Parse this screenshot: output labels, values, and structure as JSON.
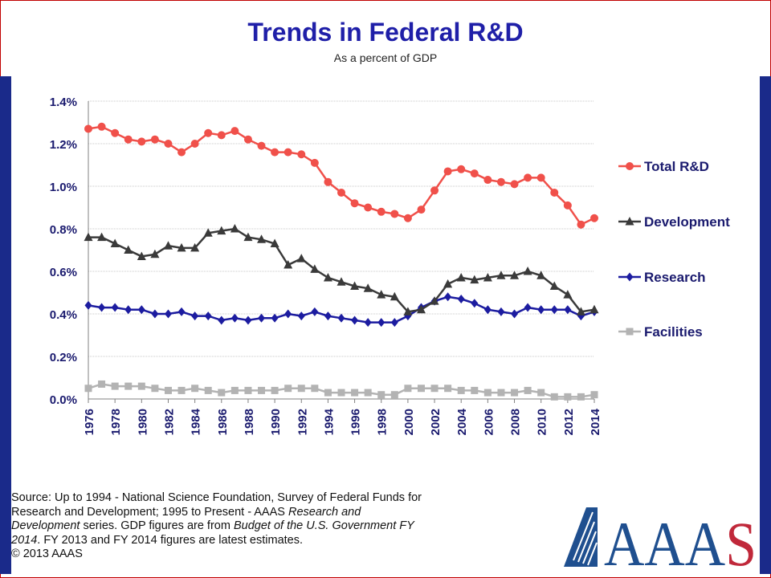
{
  "title": "Trends in Federal R&D",
  "subtitle": "As a percent of GDP",
  "source": {
    "line1": "Source: Up to 1994 - National Science Foundation, Survey of Federal Funds for",
    "line2a": "Research and Development; 1995 to Present - AAAS ",
    "line2b": "Research and",
    "line3a": "Development",
    "line3b": " series. GDP figures are from ",
    "line3c": "Budget of the U.S. Government FY",
    "line4a": "2014",
    "line4b": ". FY 2013 and FY 2014 figures are latest estimates.",
    "line5": "© 2013 AAAS"
  },
  "logo_text": "AAAS",
  "colors": {
    "total": "#f0504a",
    "development": "#3a3a3a",
    "research": "#1c1ca0",
    "facilities": "#b3b3b3",
    "title": "#1f1fa8",
    "band": "#1a2a8a"
  },
  "chart_data": {
    "type": "line",
    "title": "Trends in Federal R&D",
    "subtitle": "As a percent of GDP",
    "x": [
      1976,
      1977,
      1978,
      1979,
      1980,
      1981,
      1982,
      1983,
      1984,
      1985,
      1986,
      1987,
      1988,
      1989,
      1990,
      1991,
      1992,
      1993,
      1994,
      1995,
      1996,
      1997,
      1998,
      1999,
      2000,
      2001,
      2002,
      2003,
      2004,
      2005,
      2006,
      2007,
      2008,
      2009,
      2010,
      2011,
      2012,
      2013,
      2014
    ],
    "x_tick_labels": [
      "1976",
      "1978",
      "1980",
      "1982",
      "1984",
      "1986",
      "1988",
      "1990",
      "1992",
      "1994",
      "1996",
      "1998",
      "2000",
      "2002",
      "2004",
      "2006",
      "2008",
      "2010",
      "2012",
      "2014"
    ],
    "y_tick_labels": [
      "0.0%",
      "0.2%",
      "0.4%",
      "0.6%",
      "0.8%",
      "1.0%",
      "1.2%",
      "1.4%"
    ],
    "ylim": [
      0,
      1.4
    ],
    "grid": true,
    "legend_position": "right",
    "series": [
      {
        "name": "Total R&D",
        "marker": "circle",
        "values": [
          1.27,
          1.28,
          1.25,
          1.22,
          1.21,
          1.22,
          1.2,
          1.16,
          1.2,
          1.25,
          1.24,
          1.26,
          1.22,
          1.19,
          1.16,
          1.16,
          1.15,
          1.11,
          1.02,
          0.97,
          0.92,
          0.9,
          0.88,
          0.87,
          0.85,
          0.89,
          0.98,
          1.07,
          1.08,
          1.06,
          1.03,
          1.02,
          1.01,
          1.04,
          1.04,
          0.97,
          0.91,
          0.82,
          0.85
        ]
      },
      {
        "name": "Development",
        "marker": "triangle",
        "values": [
          0.76,
          0.76,
          0.73,
          0.7,
          0.67,
          0.68,
          0.72,
          0.71,
          0.71,
          0.78,
          0.79,
          0.8,
          0.76,
          0.75,
          0.73,
          0.63,
          0.66,
          0.61,
          0.57,
          0.55,
          0.53,
          0.52,
          0.49,
          0.48,
          0.41,
          0.42,
          0.46,
          0.54,
          0.57,
          0.56,
          0.57,
          0.58,
          0.58,
          0.6,
          0.58,
          0.53,
          0.49,
          0.41,
          0.42
        ]
      },
      {
        "name": "Research",
        "marker": "diamond",
        "values": [
          0.44,
          0.43,
          0.43,
          0.42,
          0.42,
          0.4,
          0.4,
          0.41,
          0.39,
          0.39,
          0.37,
          0.38,
          0.37,
          0.38,
          0.38,
          0.4,
          0.39,
          0.41,
          0.39,
          0.38,
          0.37,
          0.36,
          0.36,
          0.36,
          0.39,
          0.43,
          0.46,
          0.48,
          0.47,
          0.45,
          0.42,
          0.41,
          0.4,
          0.43,
          0.42,
          0.42,
          0.42,
          0.39,
          0.41
        ]
      },
      {
        "name": "Facilities",
        "marker": "square",
        "values": [
          0.05,
          0.07,
          0.06,
          0.06,
          0.06,
          0.05,
          0.04,
          0.04,
          0.05,
          0.04,
          0.03,
          0.04,
          0.04,
          0.04,
          0.04,
          0.05,
          0.05,
          0.05,
          0.03,
          0.03,
          0.03,
          0.03,
          0.02,
          0.02,
          0.05,
          0.05,
          0.05,
          0.05,
          0.04,
          0.04,
          0.03,
          0.03,
          0.03,
          0.04,
          0.03,
          0.01,
          0.01,
          0.01,
          0.02
        ]
      }
    ]
  }
}
